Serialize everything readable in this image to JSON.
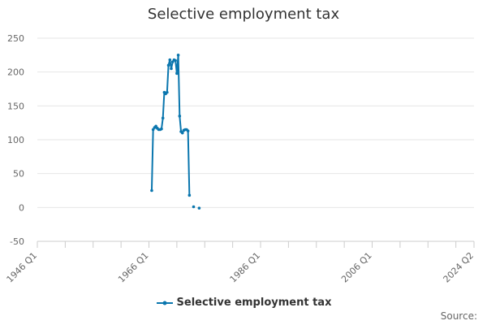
{
  "chart_data": {
    "type": "line",
    "title": "Selective employment tax",
    "xlabel": "",
    "ylabel": "",
    "ylim": [
      -50,
      250
    ],
    "y_ticks": [
      -50,
      0,
      50,
      100,
      150,
      200,
      250
    ],
    "x_range": [
      "1946 Q1",
      "2024 Q2"
    ],
    "x_ticks": [
      "1946 Q1",
      "1966 Q1",
      "1986 Q1",
      "2006 Q1",
      "2024 Q2"
    ],
    "grid": true,
    "legend_position": "bottom",
    "series": [
      {
        "name": "Selective employment tax",
        "color": "#0a76ae",
        "points": [
          {
            "x": "1966 Q3",
            "y": 25
          },
          {
            "x": "1966 Q4",
            "y": 115
          },
          {
            "x": "1967 Q1",
            "y": 118
          },
          {
            "x": "1967 Q2",
            "y": 120
          },
          {
            "x": "1967 Q3",
            "y": 117
          },
          {
            "x": "1967 Q4",
            "y": 115
          },
          {
            "x": "1968 Q1",
            "y": 115
          },
          {
            "x": "1968 Q2",
            "y": 116
          },
          {
            "x": "1968 Q3",
            "y": 132
          },
          {
            "x": "1968 Q4",
            "y": 170
          },
          {
            "x": "1969 Q1",
            "y": 168
          },
          {
            "x": "1969 Q2",
            "y": 170
          },
          {
            "x": "1969 Q3",
            "y": 210
          },
          {
            "x": "1969 Q4",
            "y": 218
          },
          {
            "x": "1970 Q1",
            "y": 205
          },
          {
            "x": "1970 Q2",
            "y": 215
          },
          {
            "x": "1970 Q3",
            "y": 218
          },
          {
            "x": "1970 Q4",
            "y": 217
          },
          {
            "x": "1971 Q1",
            "y": 198
          },
          {
            "x": "1971 Q2",
            "y": 225
          },
          {
            "x": "1971 Q3",
            "y": 135
          },
          {
            "x": "1971 Q4",
            "y": 112
          },
          {
            "x": "1972 Q1",
            "y": 110
          },
          {
            "x": "1972 Q2",
            "y": 114
          },
          {
            "x": "1972 Q3",
            "y": 115
          },
          {
            "x": "1972 Q4",
            "y": 115
          },
          {
            "x": "1973 Q1",
            "y": 113
          },
          {
            "x": "1973 Q2",
            "y": 18
          },
          {
            "x": "1974 Q1",
            "y": 1,
            "gap_before": true
          },
          {
            "x": "1975 Q1",
            "y": -1,
            "gap_before": true
          }
        ]
      }
    ]
  },
  "legend": {
    "label": "Selective employment tax"
  },
  "source": {
    "label": "Source:"
  }
}
